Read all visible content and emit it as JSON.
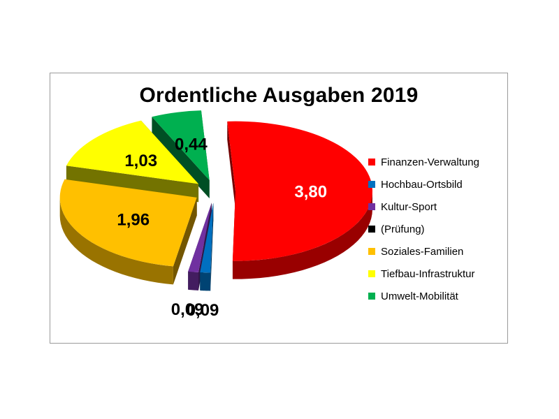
{
  "chart_data": {
    "type": "pie",
    "title": "Ordentliche Ausgaben 2019",
    "legend_position": "right",
    "exploded": true,
    "three_d": true,
    "slices": [
      {
        "label": "Finanzen-Verwaltung",
        "value": 3.8,
        "display": "3,80",
        "color": "#ff0000"
      },
      {
        "label": "Hochbau-Ortsbild",
        "value": 0.09,
        "display": "0,09",
        "color": "#0070c0"
      },
      {
        "label": "Kultur-Sport",
        "value": 0.09,
        "display": "0,09",
        "color": "#7030a0"
      },
      {
        "label": "(Prüfung)",
        "value": 0,
        "display": "",
        "color": "#000000"
      },
      {
        "label": "Soziales-Familien",
        "value": 1.96,
        "display": "1,96",
        "color": "#ffc000"
      },
      {
        "label": "Tiefbau-Infrastruktur",
        "value": 1.03,
        "display": "1,03",
        "color": "#ffff00"
      },
      {
        "label": "Umwelt-Mobilität",
        "value": 0.44,
        "display": "0,44",
        "color": "#00b050"
      }
    ]
  }
}
